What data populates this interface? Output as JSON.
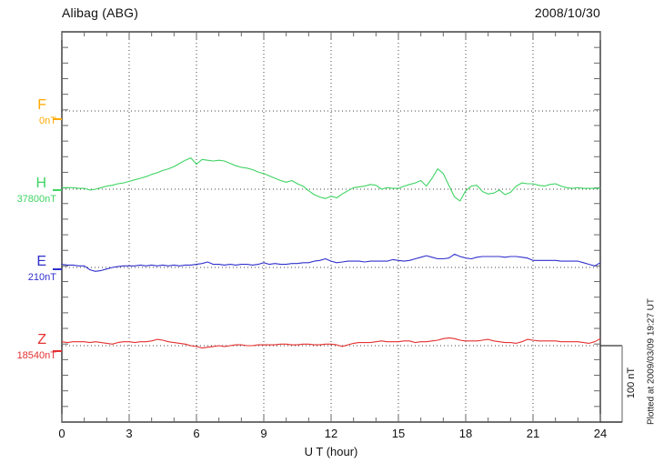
{
  "header": {
    "title": "Alibag (ABG)",
    "date": "2008/10/30"
  },
  "xaxis": {
    "title": "U T (hour)",
    "tick_labels": [
      "0",
      "3",
      "6",
      "9",
      "12",
      "15",
      "18",
      "21",
      "24"
    ]
  },
  "scale_bar": {
    "label": "100 nT",
    "span_nT": 100
  },
  "plotted_note": "Plotted at 2009/03/09 19:27 UT",
  "colors": {
    "F": "#FFAA00",
    "H": "#3FD463",
    "E": "#3030CC",
    "Z": "#E53030",
    "frame": "#333333",
    "tick": "#666666",
    "grid": "#444444",
    "scalebar_line": "#999999"
  },
  "chart_data": {
    "type": "line",
    "title": "Alibag (ABG) magnetogram",
    "date": "2008/10/30",
    "xlabel": "U T (hour)",
    "x_range": [
      0,
      24
    ],
    "x_major_ticks": [
      0,
      3,
      6,
      9,
      12,
      15,
      18,
      21,
      24
    ],
    "x_step_hours": 0.25,
    "y_scale_nT_per_division": 100,
    "grid": "dotted",
    "series": [
      {
        "name": "F",
        "baseline_label": "0nT",
        "color_key": "F",
        "values": []
      },
      {
        "name": "H",
        "baseline_label": "37800nT",
        "color_key": "H",
        "values": [
          2,
          2,
          2,
          1,
          1,
          -1,
          0,
          2,
          4,
          5,
          7,
          8,
          10,
          12,
          14,
          16,
          19,
          21,
          24,
          26,
          29,
          33,
          37,
          40,
          32,
          38,
          37,
          36,
          37,
          36,
          33,
          30,
          28,
          27,
          25,
          22,
          20,
          17,
          14,
          11,
          9,
          11,
          7,
          4,
          -2,
          -7,
          -10,
          -12,
          -9,
          -11,
          -6,
          -2,
          2,
          3,
          4,
          6,
          5,
          0,
          2,
          1,
          1,
          4,
          6,
          8,
          11,
          4,
          14,
          26,
          20,
          5,
          -10,
          -15,
          -2,
          4,
          5,
          -3,
          -6,
          -5,
          -1,
          -7,
          -4,
          4,
          8,
          7,
          7,
          5,
          4,
          6,
          7,
          4,
          2,
          1,
          2,
          1,
          1,
          1,
          1
        ]
      },
      {
        "name": "E",
        "baseline_label": "210nT",
        "color_key": "E",
        "values": [
          4,
          3,
          3,
          2,
          2,
          -3,
          -5,
          -4,
          -2,
          0,
          1,
          2,
          2,
          2,
          3,
          2,
          3,
          2,
          3,
          2,
          3,
          2,
          3,
          3,
          4,
          5,
          7,
          4,
          4,
          3,
          4,
          3,
          4,
          4,
          3,
          4,
          6,
          4,
          5,
          4,
          4,
          5,
          5,
          6,
          6,
          8,
          9,
          11,
          8,
          6,
          7,
          8,
          8,
          8,
          7,
          8,
          8,
          8,
          8,
          10,
          9,
          8,
          9,
          11,
          13,
          15,
          13,
          11,
          11,
          12,
          17,
          14,
          12,
          11,
          13,
          14,
          14,
          14,
          14,
          13,
          14,
          14,
          13,
          12,
          9,
          9,
          9,
          9,
          9,
          8,
          8,
          8,
          8,
          6,
          4,
          2,
          6
        ]
      },
      {
        "name": "Z",
        "baseline_label": "18540nT",
        "color_key": "Z",
        "values": [
          5,
          4,
          5,
          5,
          5,
          4,
          5,
          4,
          3,
          2,
          4,
          5,
          5,
          4,
          5,
          5,
          6,
          8,
          7,
          5,
          4,
          3,
          2,
          0,
          -1,
          -3,
          -2,
          -1,
          0,
          -1,
          0,
          1,
          1,
          0,
          0,
          1,
          1,
          1,
          1,
          2,
          2,
          1,
          1,
          2,
          2,
          1,
          1,
          2,
          2,
          1,
          -1,
          1,
          3,
          4,
          4,
          4,
          5,
          6,
          5,
          5,
          5,
          6,
          6,
          4,
          5,
          5,
          6,
          7,
          9,
          10,
          9,
          7,
          6,
          6,
          6,
          7,
          8,
          6,
          5,
          4,
          4,
          3,
          5,
          8,
          7,
          6,
          6,
          6,
          6,
          5,
          5,
          5,
          5,
          4,
          3,
          5,
          9
        ]
      }
    ]
  }
}
